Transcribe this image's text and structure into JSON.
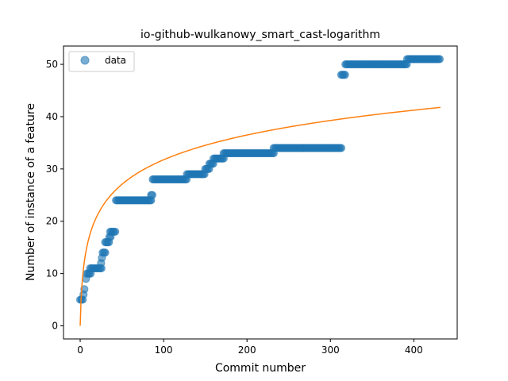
{
  "chart_data": {
    "type": "scatter",
    "title": "io-github-wulkanowy_smart_cast-logarithm",
    "xlabel": "Commit number",
    "ylabel": "Number of instance of a feature",
    "xlim": [
      -20,
      452
    ],
    "ylim": [
      -2.5,
      53.5
    ],
    "xticks": [
      0,
      100,
      200,
      300,
      400
    ],
    "yticks": [
      0,
      10,
      20,
      30,
      40,
      50
    ],
    "xtick_labels": [
      "0",
      "100",
      "200",
      "300",
      "400"
    ],
    "ytick_labels": [
      "0",
      "10",
      "20",
      "30",
      "40",
      "50"
    ],
    "grid": false,
    "legend": {
      "position": "top-left",
      "entries": [
        "data"
      ]
    },
    "series": [
      {
        "name": "data",
        "kind": "scatter",
        "color": "#1f77b4",
        "segments": [
          {
            "x0": 0,
            "x1": 3,
            "y": 5
          },
          {
            "x0": 4,
            "x1": 4,
            "y": 6
          },
          {
            "x0": 5,
            "x1": 6,
            "y": 7
          },
          {
            "x0": 7,
            "x1": 8,
            "y": 9
          },
          {
            "x0": 8,
            "x1": 13,
            "y": 10
          },
          {
            "x0": 12,
            "x1": 26,
            "y": 11
          },
          {
            "x0": 25,
            "x1": 26,
            "y": 12
          },
          {
            "x0": 26,
            "x1": 27,
            "y": 13
          },
          {
            "x0": 27,
            "x1": 30,
            "y": 14
          },
          {
            "x0": 30,
            "x1": 35,
            "y": 16
          },
          {
            "x0": 35,
            "x1": 37,
            "y": 17
          },
          {
            "x0": 36,
            "x1": 43,
            "y": 18
          },
          {
            "x0": 43,
            "x1": 85,
            "y": 24
          },
          {
            "x0": 85,
            "x1": 87,
            "y": 25
          },
          {
            "x0": 87,
            "x1": 128,
            "y": 28
          },
          {
            "x0": 128,
            "x1": 150,
            "y": 29
          },
          {
            "x0": 150,
            "x1": 155,
            "y": 30
          },
          {
            "x0": 155,
            "x1": 160,
            "y": 31
          },
          {
            "x0": 160,
            "x1": 172,
            "y": 32
          },
          {
            "x0": 172,
            "x1": 232,
            "y": 33
          },
          {
            "x0": 232,
            "x1": 313,
            "y": 34
          },
          {
            "x0": 313,
            "x1": 318,
            "y": 48
          },
          {
            "x0": 318,
            "x1": 392,
            "y": 50
          },
          {
            "x0": 392,
            "x1": 432,
            "y": 51
          }
        ]
      },
      {
        "kind": "line",
        "color": "#ff7f0e",
        "curve": "logarithmic",
        "x_range": [
          0,
          432
        ],
        "coef": 6.88
      }
    ]
  }
}
